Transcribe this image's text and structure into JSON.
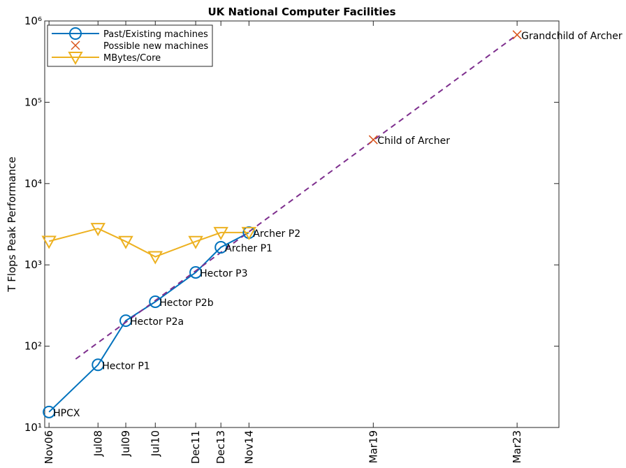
{
  "chart_data": {
    "type": "line",
    "title": "UK National Computer Facilities",
    "y_label": "T Flops Peak Performance",
    "log_y": true,
    "xlim": [
      2006.68,
      2024.63
    ],
    "ylim": [
      10,
      1000000
    ],
    "xticks": [
      {
        "value": 2006.83,
        "label": "Nov06"
      },
      {
        "value": 2008.54,
        "label": "Jul08"
      },
      {
        "value": 2009.51,
        "label": "Jul09"
      },
      {
        "value": 2010.54,
        "label": "Jul10"
      },
      {
        "value": 2011.95,
        "label": "Dec11"
      },
      {
        "value": 2012.83,
        "label": "Dec13"
      },
      {
        "value": 2013.81,
        "label": "Nov14"
      },
      {
        "value": 2018.15,
        "label": "Mar19"
      },
      {
        "value": 2023.17,
        "label": "Mar23"
      }
    ],
    "yticks": [
      {
        "value": 10,
        "label": "10¹"
      },
      {
        "value": 100,
        "label": "10²"
      },
      {
        "value": 1000,
        "label": "10³"
      },
      {
        "value": 10000,
        "label": "10⁴"
      },
      {
        "value": 100000,
        "label": "10⁵"
      },
      {
        "value": 1000000,
        "label": "10⁶"
      }
    ],
    "legend": "upper left",
    "series": [
      {
        "name": "Past/Existing machines",
        "color": "#0072bd",
        "marker": "circle",
        "line": true,
        "x": [
          2006.83,
          2008.54,
          2009.51,
          2010.54,
          2011.95,
          2012.83,
          2013.81
        ],
        "values": [
          15.5,
          59,
          206,
          352,
          808,
          1645,
          2494
        ],
        "point_labels": [
          "HPCX",
          "Hector P1",
          "Hector P2a",
          "Hector P2b",
          "Hector P3",
          "Archer P1",
          "Archer P2"
        ]
      },
      {
        "name": "Possible new machines",
        "color": "#d95319",
        "marker": "x",
        "line": false,
        "x": [
          2018.15,
          2023.17
        ],
        "values": [
          34600,
          676000
        ],
        "point_labels": [
          "Child of Archer",
          "Grandchild of Archer"
        ]
      },
      {
        "name": "MBytes/Core",
        "color": "#edb120",
        "marker": "triangle-down",
        "line": true,
        "x": [
          2006.83,
          2008.54,
          2009.51,
          2010.54,
          2011.95,
          2012.83,
          2013.81
        ],
        "values": [
          1950,
          2800,
          1940,
          1260,
          1940,
          2500,
          2500
        ]
      }
    ],
    "trend": {
      "color": "#7e2f8e",
      "dashed": true,
      "x": [
        2007.76,
        2023.17
      ],
      "values": [
        69.5,
        676000
      ]
    }
  }
}
